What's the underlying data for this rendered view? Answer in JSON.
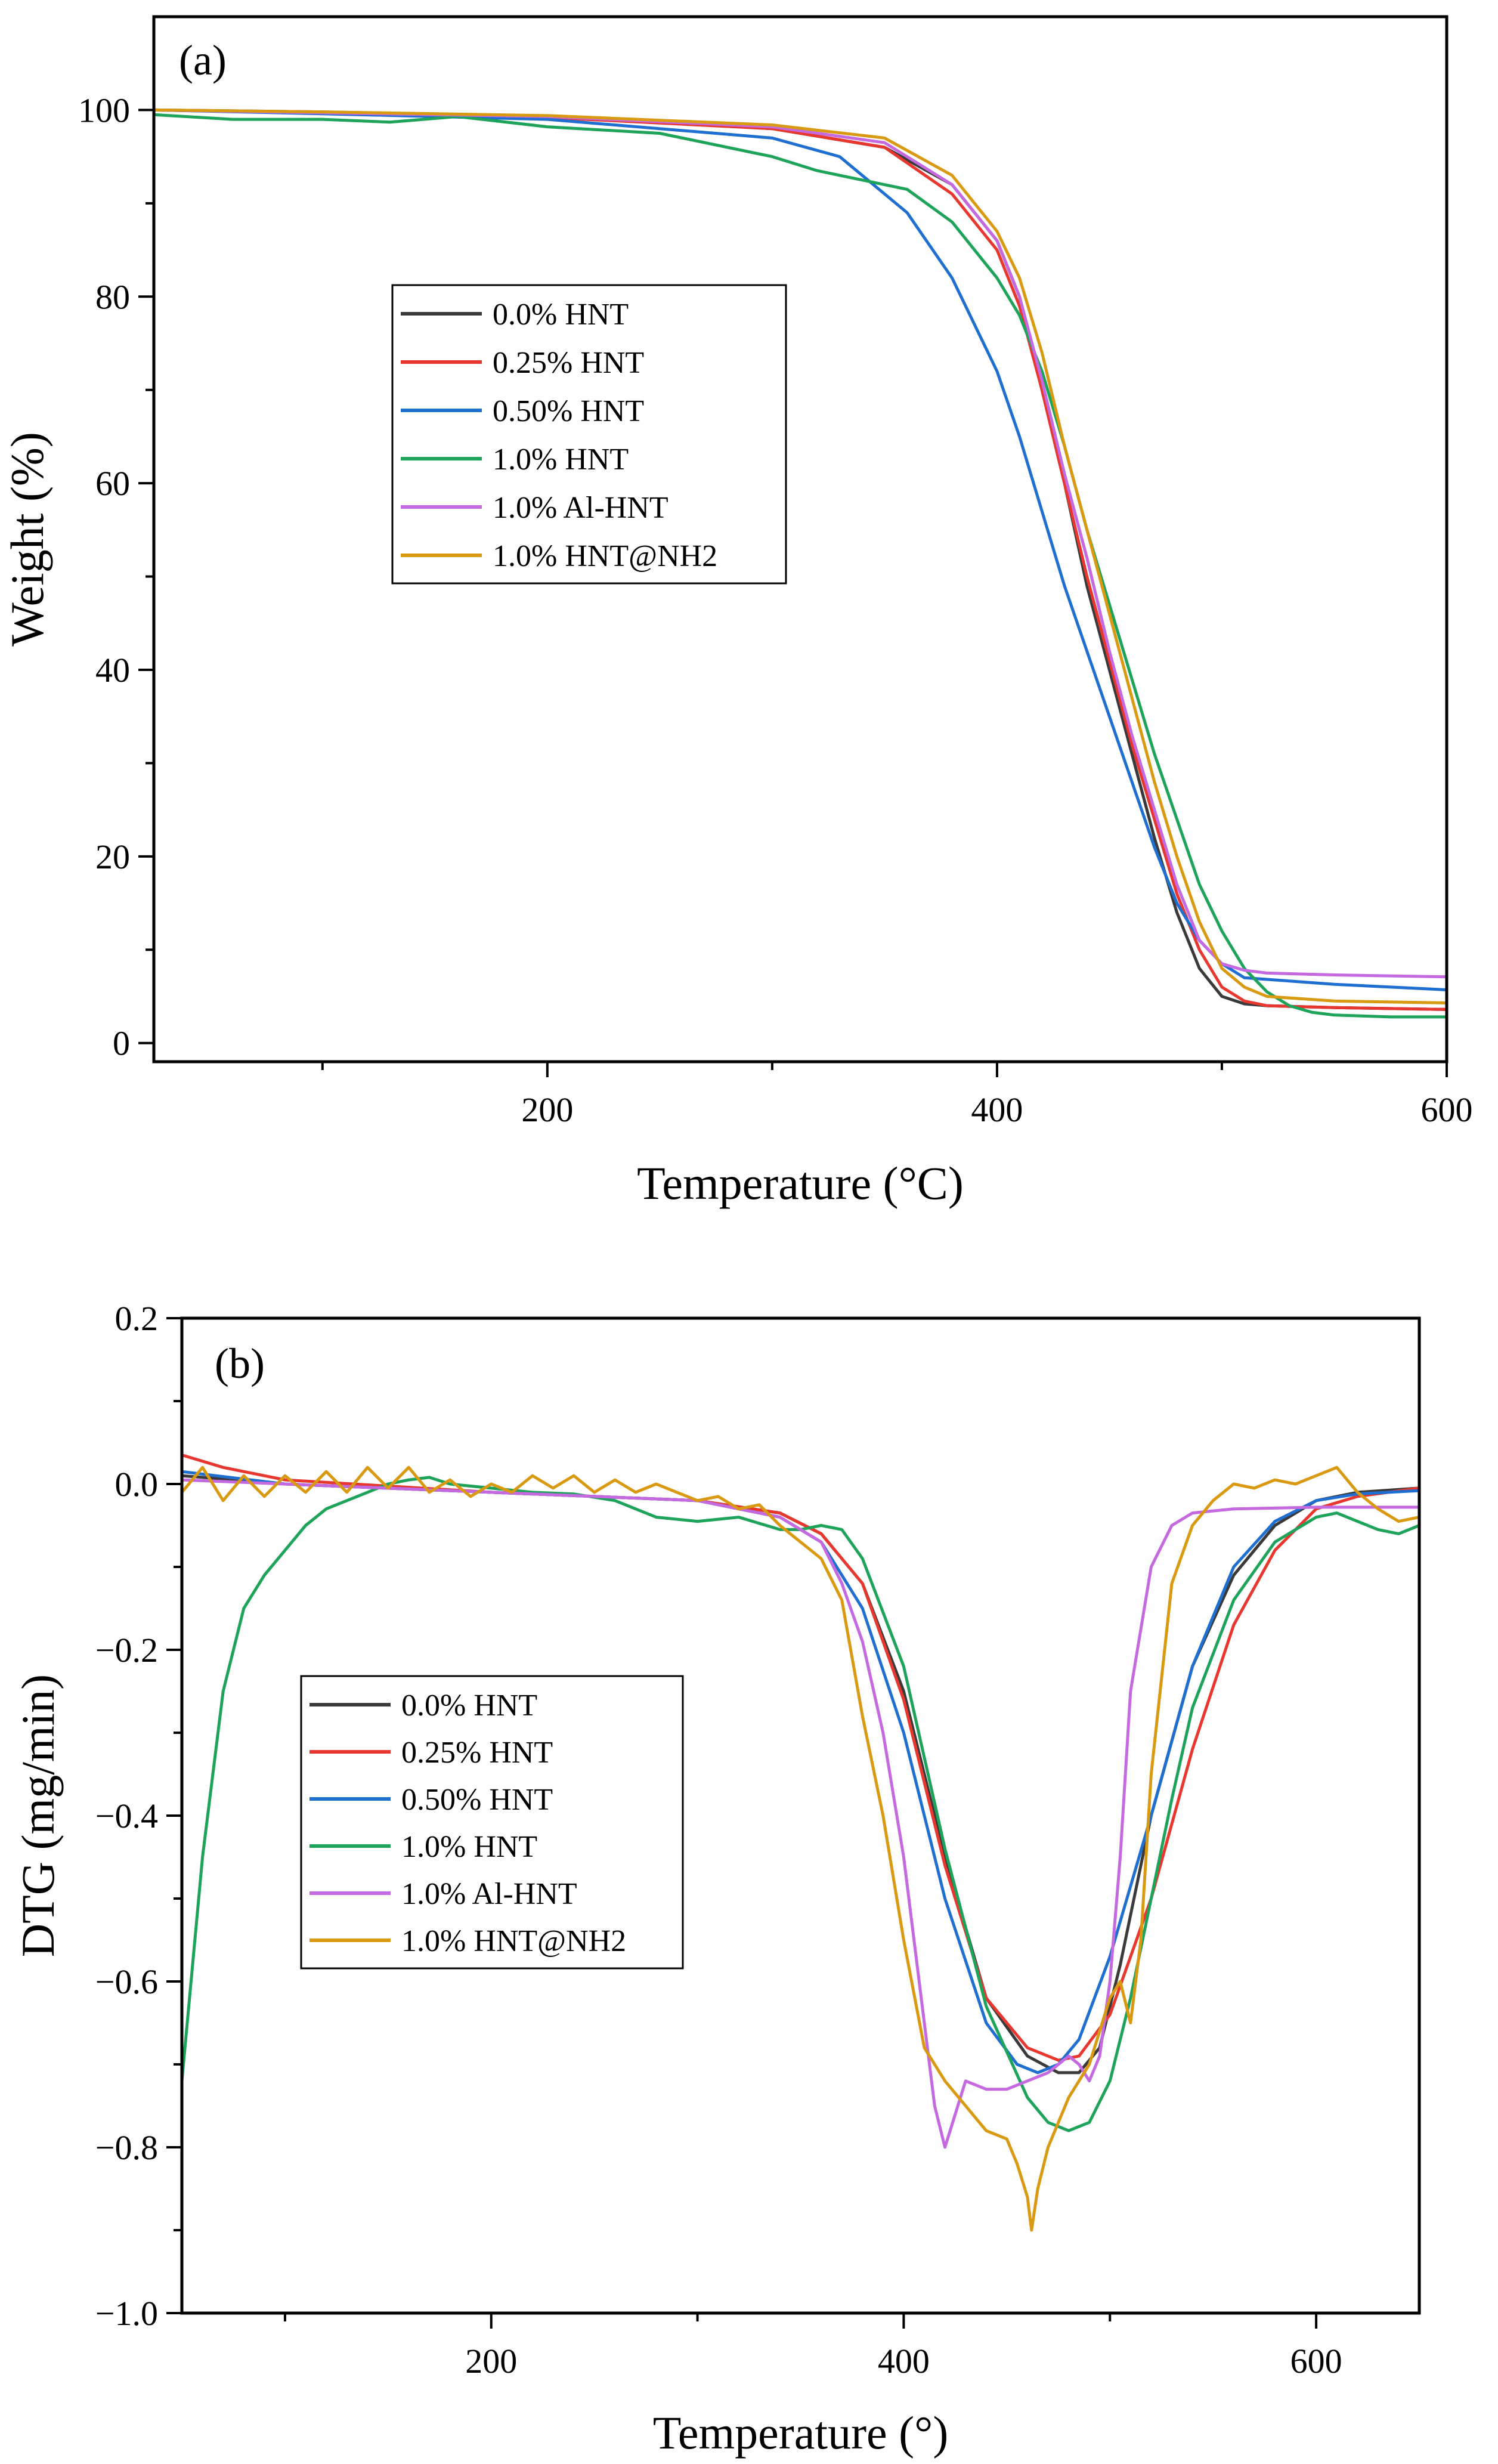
{
  "chart_data": [
    {
      "type": "line",
      "panel_label": "(a)",
      "xlabel": "Temperature (°C)",
      "ylabel": "Weight (%)",
      "xlim": [
        25,
        600
      ],
      "ylim": [
        -2,
        110
      ],
      "xticks": [
        {
          "v": 200,
          "label": "200"
        },
        {
          "v": 400,
          "label": "400"
        },
        {
          "v": 600,
          "label": "600"
        }
      ],
      "xminor": [
        100,
        300,
        500
      ],
      "yticks": [
        {
          "v": 0,
          "label": "0"
        },
        {
          "v": 20,
          "label": "20"
        },
        {
          "v": 40,
          "label": "40"
        },
        {
          "v": 60,
          "label": "60"
        },
        {
          "v": 80,
          "label": "80"
        },
        {
          "v": 100,
          "label": "100"
        }
      ],
      "yminor": [
        10,
        30,
        50,
        70,
        90
      ],
      "legend_position": "center-left",
      "series": [
        {
          "name": "0.0% HNT",
          "color": "#3a3a3a",
          "x": [
            25,
            100,
            200,
            300,
            350,
            380,
            400,
            410,
            420,
            430,
            440,
            450,
            460,
            470,
            480,
            490,
            500,
            510,
            520,
            550,
            600
          ],
          "y": [
            100,
            99.8,
            99.3,
            98,
            96,
            92,
            86,
            80,
            70,
            60,
            49,
            40,
            31,
            22,
            14,
            8,
            5,
            4.2,
            4,
            3.8,
            3.6
          ]
        },
        {
          "name": "0.25% HNT",
          "color": "#e8372f",
          "x": [
            25,
            100,
            200,
            300,
            350,
            380,
            400,
            410,
            420,
            430,
            440,
            450,
            460,
            470,
            480,
            490,
            500,
            510,
            520,
            550,
            600
          ],
          "y": [
            100,
            99.7,
            99.2,
            98,
            96,
            91,
            85,
            79,
            70,
            60,
            50,
            41,
            32,
            24,
            16,
            10,
            6,
            4.5,
            4,
            3.8,
            3.6
          ]
        },
        {
          "name": "0.50% HNT",
          "color": "#1f6fd1",
          "x": [
            25,
            100,
            200,
            300,
            330,
            360,
            380,
            400,
            410,
            420,
            430,
            440,
            450,
            460,
            470,
            480,
            490,
            500,
            510,
            550,
            600
          ],
          "y": [
            100,
            99.6,
            99,
            97,
            95,
            89,
            82,
            72,
            65,
            57,
            49,
            42,
            35,
            28,
            21,
            15,
            11,
            8.5,
            7,
            6.3,
            5.7
          ]
        },
        {
          "name": "1.0% HNT",
          "color": "#1ea35a",
          "x": [
            25,
            60,
            100,
            130,
            160,
            200,
            250,
            300,
            320,
            340,
            360,
            380,
            400,
            410,
            420,
            430,
            440,
            450,
            460,
            470,
            480,
            490,
            500,
            510,
            520,
            530,
            540,
            550,
            575,
            600
          ],
          "y": [
            99.5,
            99,
            99,
            98.7,
            99.3,
            98.2,
            97.5,
            95,
            93.5,
            92.5,
            91.5,
            88,
            82,
            78,
            72,
            64,
            55,
            47,
            39,
            31,
            24,
            17,
            12,
            8,
            5.5,
            4,
            3.3,
            3,
            2.8,
            2.8
          ]
        },
        {
          "name": "1.0% Al-HNT",
          "color": "#c569e0",
          "x": [
            25,
            100,
            200,
            300,
            350,
            380,
            400,
            410,
            420,
            430,
            440,
            450,
            460,
            470,
            480,
            490,
            500,
            510,
            520,
            550,
            600
          ],
          "y": [
            100,
            99.7,
            99.3,
            98.2,
            96.5,
            92,
            86,
            80,
            71,
            61,
            52,
            42,
            33,
            25,
            17,
            11,
            8.5,
            7.8,
            7.5,
            7.3,
            7.1
          ]
        },
        {
          "name": "1.0% HNT@NH2",
          "color": "#d99a12",
          "x": [
            25,
            100,
            200,
            300,
            350,
            380,
            400,
            410,
            420,
            430,
            440,
            450,
            460,
            470,
            480,
            490,
            500,
            510,
            520,
            550,
            600
          ],
          "y": [
            100,
            99.8,
            99.4,
            98.4,
            97,
            93,
            87,
            82,
            74,
            64,
            55,
            46,
            37,
            28,
            20,
            13,
            8,
            6,
            5,
            4.5,
            4.3
          ]
        }
      ]
    },
    {
      "type": "line",
      "panel_label": "(b)",
      "xlabel": "Temperature (°)",
      "ylabel": "DTG (mg/min)",
      "xlim": [
        50,
        650
      ],
      "ylim": [
        -1.0,
        0.2
      ],
      "xticks": [
        {
          "v": 200,
          "label": "200"
        },
        {
          "v": 400,
          "label": "400"
        },
        {
          "v": 600,
          "label": "600"
        }
      ],
      "xminor": [
        100,
        300,
        500
      ],
      "yticks": [
        {
          "v": 0.2,
          "label": "0.2"
        },
        {
          "v": 0.0,
          "label": "0.0"
        },
        {
          "v": -0.2,
          "label": "−0.2"
        },
        {
          "v": -0.4,
          "label": "−0.4"
        },
        {
          "v": -0.6,
          "label": "−0.6"
        },
        {
          "v": -0.8,
          "label": "−0.8"
        },
        {
          "v": -1.0,
          "label": "−1.0"
        }
      ],
      "yminor": [
        0.1,
        -0.1,
        -0.3,
        -0.5,
        -0.7,
        -0.9
      ],
      "legend_position": "center-left",
      "series": [
        {
          "name": "0.0% HNT",
          "color": "#3a3a3a",
          "x": [
            50,
            100,
            200,
            300,
            340,
            360,
            380,
            400,
            420,
            440,
            460,
            475,
            485,
            495,
            505,
            520,
            540,
            560,
            580,
            600,
            620,
            650
          ],
          "y": [
            0.01,
            0.0,
            -0.01,
            -0.02,
            -0.035,
            -0.06,
            -0.12,
            -0.25,
            -0.45,
            -0.62,
            -0.69,
            -0.71,
            -0.71,
            -0.68,
            -0.58,
            -0.4,
            -0.22,
            -0.11,
            -0.05,
            -0.02,
            -0.01,
            -0.005
          ]
        },
        {
          "name": "0.25% HNT",
          "color": "#e8372f",
          "x": [
            50,
            70,
            100,
            200,
            300,
            340,
            360,
            380,
            400,
            420,
            440,
            460,
            475,
            485,
            500,
            520,
            540,
            560,
            580,
            600,
            620,
            650
          ],
          "y": [
            0.035,
            0.02,
            0.005,
            -0.01,
            -0.02,
            -0.035,
            -0.06,
            -0.12,
            -0.26,
            -0.46,
            -0.62,
            -0.68,
            -0.695,
            -0.69,
            -0.64,
            -0.5,
            -0.32,
            -0.17,
            -0.08,
            -0.03,
            -0.015,
            -0.005
          ]
        },
        {
          "name": "0.50% HNT",
          "color": "#1f6fd1",
          "x": [
            50,
            100,
            200,
            300,
            340,
            360,
            380,
            400,
            420,
            440,
            455,
            465,
            475,
            485,
            500,
            520,
            540,
            560,
            580,
            600,
            620,
            650
          ],
          "y": [
            0.015,
            0.0,
            -0.01,
            -0.02,
            -0.04,
            -0.07,
            -0.15,
            -0.3,
            -0.5,
            -0.65,
            -0.7,
            -0.71,
            -0.7,
            -0.67,
            -0.57,
            -0.4,
            -0.22,
            -0.1,
            -0.045,
            -0.02,
            -0.012,
            -0.008
          ]
        },
        {
          "name": "1.0% HNT",
          "color": "#1ea35a",
          "x": [
            50,
            60,
            70,
            80,
            90,
            100,
            110,
            120,
            130,
            140,
            150,
            160,
            170,
            180,
            200,
            220,
            240,
            260,
            280,
            300,
            320,
            340,
            350,
            360,
            370,
            380,
            400,
            420,
            440,
            460,
            470,
            480,
            490,
            500,
            510,
            520,
            530,
            540,
            560,
            580,
            600,
            610,
            620,
            630,
            640,
            650
          ],
          "y": [
            -0.72,
            -0.45,
            -0.25,
            -0.15,
            -0.11,
            -0.08,
            -0.05,
            -0.03,
            -0.02,
            -0.01,
            0.0,
            0.005,
            0.008,
            0.0,
            -0.005,
            -0.01,
            -0.012,
            -0.02,
            -0.04,
            -0.045,
            -0.04,
            -0.055,
            -0.055,
            -0.05,
            -0.055,
            -0.09,
            -0.22,
            -0.44,
            -0.63,
            -0.74,
            -0.77,
            -0.78,
            -0.77,
            -0.72,
            -0.62,
            -0.5,
            -0.38,
            -0.27,
            -0.14,
            -0.07,
            -0.04,
            -0.035,
            -0.045,
            -0.055,
            -0.06,
            -0.05
          ]
        },
        {
          "name": "1.0% Al-HNT",
          "color": "#c569e0",
          "x": [
            50,
            100,
            200,
            300,
            340,
            360,
            370,
            380,
            390,
            400,
            410,
            415,
            420,
            425,
            430,
            440,
            450,
            460,
            470,
            480,
            485,
            490,
            495,
            500,
            505,
            510,
            520,
            530,
            540,
            560,
            600,
            650
          ],
          "y": [
            0.005,
            0.0,
            -0.01,
            -0.02,
            -0.04,
            -0.07,
            -0.12,
            -0.19,
            -0.3,
            -0.45,
            -0.65,
            -0.75,
            -0.8,
            -0.76,
            -0.72,
            -0.73,
            -0.73,
            -0.72,
            -0.71,
            -0.69,
            -0.7,
            -0.72,
            -0.69,
            -0.6,
            -0.45,
            -0.25,
            -0.1,
            -0.05,
            -0.035,
            -0.03,
            -0.028,
            -0.028
          ]
        },
        {
          "name": "1.0% HNT@NH2",
          "color": "#d99a12",
          "x": [
            50,
            60,
            70,
            80,
            90,
            100,
            110,
            120,
            130,
            140,
            150,
            160,
            170,
            180,
            190,
            200,
            210,
            220,
            230,
            240,
            250,
            260,
            270,
            280,
            290,
            300,
            310,
            320,
            330,
            340,
            350,
            360,
            370,
            380,
            390,
            400,
            410,
            420,
            430,
            440,
            450,
            455,
            460,
            462,
            465,
            470,
            480,
            490,
            500,
            505,
            510,
            515,
            520,
            530,
            540,
            550,
            560,
            570,
            580,
            590,
            600,
            610,
            620,
            630,
            640,
            650
          ],
          "y": [
            -0.01,
            0.02,
            -0.02,
            0.01,
            -0.015,
            0.01,
            -0.01,
            0.015,
            -0.01,
            0.02,
            -0.005,
            0.02,
            -0.01,
            0.005,
            -0.015,
            0.0,
            -0.01,
            0.01,
            -0.005,
            0.01,
            -0.01,
            0.005,
            -0.01,
            0.0,
            -0.01,
            -0.02,
            -0.015,
            -0.03,
            -0.025,
            -0.05,
            -0.07,
            -0.09,
            -0.14,
            -0.28,
            -0.4,
            -0.55,
            -0.68,
            -0.72,
            -0.75,
            -0.78,
            -0.79,
            -0.82,
            -0.86,
            -0.9,
            -0.85,
            -0.8,
            -0.74,
            -0.7,
            -0.62,
            -0.6,
            -0.65,
            -0.55,
            -0.35,
            -0.12,
            -0.05,
            -0.02,
            0.0,
            -0.005,
            0.005,
            0.0,
            0.01,
            0.02,
            -0.01,
            -0.03,
            -0.045,
            -0.04
          ]
        }
      ]
    }
  ]
}
